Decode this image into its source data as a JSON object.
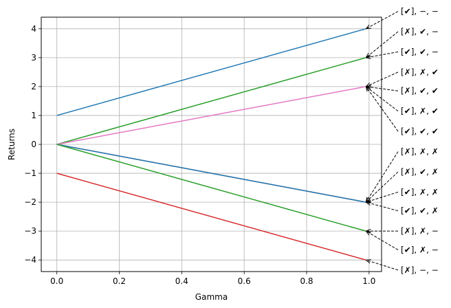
{
  "chart_data": {
    "type": "line",
    "title": "",
    "xlabel": "Gamma",
    "ylabel": "Returns",
    "xlim": [
      -0.05,
      1.04
    ],
    "ylim": [
      -4.4,
      4.4
    ],
    "x_ticks": [
      0.0,
      0.2,
      0.4,
      0.6,
      0.8,
      1.0
    ],
    "x_tick_labels": [
      "0.0",
      "0.2",
      "0.4",
      "0.6",
      "0.8",
      "1.0"
    ],
    "y_ticks": [
      -4,
      -3,
      -2,
      -1,
      0,
      1,
      2,
      3,
      4
    ],
    "y_tick_labels": [
      "−4",
      "−3",
      "−2",
      "−1",
      "0",
      "1",
      "2",
      "3",
      "4"
    ],
    "grid": true,
    "series": [
      {
        "color": "#1f77b4",
        "x": [
          0,
          0.99
        ],
        "y": [
          1,
          4
        ]
      },
      {
        "color": "#2ca02c",
        "x": [
          0,
          0.99
        ],
        "y": [
          0,
          3
        ]
      },
      {
        "color": "#e377c2",
        "x": [
          0,
          0.99
        ],
        "y": [
          0,
          2
        ]
      },
      {
        "color": "#8c564b",
        "x": [
          0,
          0.99
        ],
        "y": [
          0,
          -2
        ]
      },
      {
        "color": "#1f77b4",
        "x": [
          0,
          0.99
        ],
        "y": [
          0,
          -2
        ]
      },
      {
        "color": "#2ca02c",
        "x": [
          0,
          0.99
        ],
        "y": [
          0,
          -3
        ]
      },
      {
        "color": "#d62728",
        "x": [
          0,
          0.99
        ],
        "y": [
          -1,
          -4
        ]
      }
    ],
    "annotations": [
      {
        "text": "[✔], −, −",
        "x": 0.99,
        "y": 4,
        "label_y": 4.6
      },
      {
        "text": "[✗], ✔, −",
        "x": 0.99,
        "y": 3,
        "label_y": 3.9
      },
      {
        "text": "[✔], ✔, −",
        "x": 0.99,
        "y": 3,
        "label_y": 3.2
      },
      {
        "text": "[✗], ✗, ✔",
        "x": 0.99,
        "y": 2,
        "label_y": 2.5
      },
      {
        "text": "[✗], ✔, ✔",
        "x": 0.99,
        "y": 2,
        "label_y": 1.85
      },
      {
        "text": "[✔], ✗, ✔",
        "x": 0.99,
        "y": 2,
        "label_y": 1.15
      },
      {
        "text": "[✔], ✔, ✔",
        "x": 0.99,
        "y": 2,
        "label_y": 0.45
      },
      {
        "text": "[✗], ✗, ✗",
        "x": 0.99,
        "y": -2,
        "label_y": -0.25
      },
      {
        "text": "[✗], ✔, ✗",
        "x": 0.99,
        "y": -2,
        "label_y": -0.95
      },
      {
        "text": "[✔], ✗, ✗",
        "x": 0.99,
        "y": -2,
        "label_y": -1.65
      },
      {
        "text": "[✔], ✔, ✗",
        "x": 0.99,
        "y": -2,
        "label_y": -2.3
      },
      {
        "text": "[✗], ✗, −",
        "x": 0.99,
        "y": -3,
        "label_y": -3.0
      },
      {
        "text": "[✔], ✗, −",
        "x": 0.99,
        "y": -3,
        "label_y": -3.65
      },
      {
        "text": "[✗], −, −",
        "x": 0.99,
        "y": -4,
        "label_y": -4.35
      }
    ]
  }
}
